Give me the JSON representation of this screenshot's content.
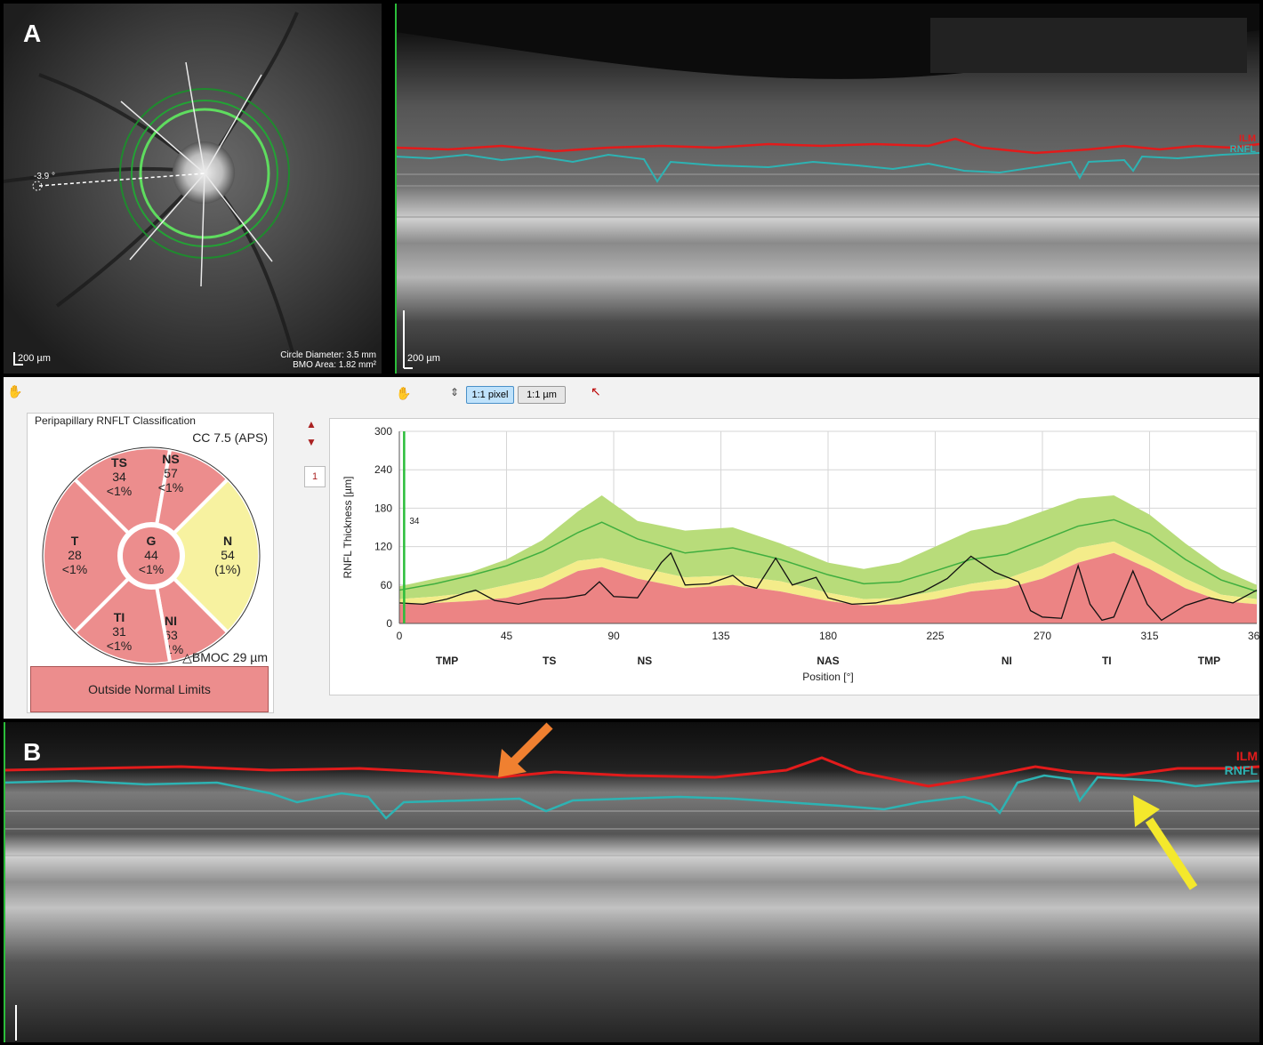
{
  "panel_a": {
    "letter": "A"
  },
  "panel_b": {
    "letter": "B"
  },
  "fundus": {
    "angle_label": "-3.9 °",
    "scale_label": "200 µm",
    "circle_diameter": "Circle Diameter: 3.5 mm",
    "bmo_area": "BMO Area: 1.82 mm²"
  },
  "bscan_a": {
    "scale_label": "200 µm",
    "ilm_label": "ILM",
    "rnfl_label": "RNFL"
  },
  "bscan_b": {
    "ilm_label": "ILM",
    "rnfl_label": "RNFL"
  },
  "toolbar": {
    "hand_icon": "hand-icon",
    "zoom_1_1_pixel": "1:1 pixel",
    "zoom_1_1_um": "1:1 µm",
    "page_number": "1"
  },
  "classification": {
    "title": "Peripapillary RNFLT Classification",
    "scan": "CC 7.5 (APS)",
    "bmoc": "BMOC 29 µm",
    "bmoc_symbol": "△",
    "verdict": "Outside Normal Limits",
    "colors": {
      "outside": "#ec8d8d",
      "borderline": "#f7f2a0"
    },
    "sectors": [
      {
        "abbr": "TS",
        "value": "34",
        "pct": "<1%",
        "status": "outside"
      },
      {
        "abbr": "NS",
        "value": "57",
        "pct": "<1%",
        "status": "outside"
      },
      {
        "abbr": "N",
        "value": "54",
        "pct": "(1%)",
        "status": "borderline"
      },
      {
        "abbr": "NI",
        "value": "63",
        "pct": "<1%",
        "status": "outside"
      },
      {
        "abbr": "TI",
        "value": "31",
        "pct": "<1%",
        "status": "outside"
      },
      {
        "abbr": "T",
        "value": "28",
        "pct": "<1%",
        "status": "outside"
      },
      {
        "abbr": "G",
        "value": "44",
        "pct": "<1%",
        "status": "outside"
      }
    ]
  },
  "chart_data": {
    "type": "line",
    "xlabel": "Position [°]",
    "ylabel": "RNFL Thickness [µm]",
    "xlim": [
      0,
      360
    ],
    "ylim": [
      0,
      300
    ],
    "xticks": [
      0,
      45,
      90,
      135,
      180,
      225,
      270,
      315,
      360
    ],
    "yticks": [
      0,
      60,
      120,
      180,
      240,
      300
    ],
    "sector_ticks": [
      {
        "x": 20,
        "label": "TMP"
      },
      {
        "x": 63,
        "label": "TS"
      },
      {
        "x": 103,
        "label": "NS"
      },
      {
        "x": 180,
        "label": "NAS"
      },
      {
        "x": 255,
        "label": "NI"
      },
      {
        "x": 297,
        "label": "TI"
      },
      {
        "x": 340,
        "label": "TMP"
      }
    ],
    "marker": {
      "x": 2,
      "label": "34"
    },
    "bands": {
      "x": [
        0,
        15,
        30,
        45,
        60,
        75,
        85,
        100,
        120,
        140,
        160,
        180,
        195,
        210,
        225,
        240,
        255,
        270,
        285,
        300,
        315,
        330,
        345,
        360
      ],
      "p1": [
        30,
        32,
        35,
        40,
        55,
        82,
        88,
        70,
        55,
        60,
        50,
        35,
        28,
        30,
        38,
        50,
        55,
        70,
        95,
        110,
        85,
        55,
        35,
        30
      ],
      "p5": [
        38,
        42,
        48,
        60,
        72,
        98,
        102,
        88,
        72,
        75,
        66,
        48,
        38,
        40,
        50,
        62,
        70,
        90,
        118,
        128,
        100,
        70,
        45,
        38
      ],
      "p95": [
        58,
        70,
        80,
        100,
        130,
        175,
        200,
        160,
        145,
        150,
        125,
        95,
        85,
        95,
        120,
        145,
        155,
        175,
        195,
        200,
        170,
        125,
        85,
        60
      ],
      "mean": [
        52,
        62,
        75,
        90,
        112,
        142,
        158,
        132,
        110,
        118,
        100,
        76,
        62,
        65,
        82,
        100,
        108,
        130,
        152,
        162,
        140,
        100,
        68,
        50
      ]
    },
    "series": [
      {
        "x": [
          0,
          10,
          20,
          28,
          32,
          40,
          50,
          60,
          70,
          78,
          84,
          90,
          100,
          110,
          114,
          120,
          130,
          140,
          145,
          150,
          158,
          165,
          175,
          180,
          190,
          200,
          210,
          220,
          230,
          240,
          250,
          260,
          265,
          270,
          278,
          285,
          290,
          295,
          300,
          308,
          314,
          320,
          330,
          340,
          350,
          360
        ],
        "values": [
          32,
          30,
          38,
          48,
          52,
          36,
          30,
          38,
          40,
          45,
          65,
          42,
          40,
          95,
          110,
          60,
          62,
          75,
          60,
          55,
          102,
          60,
          72,
          40,
          30,
          32,
          40,
          50,
          70,
          105,
          80,
          65,
          20,
          10,
          8,
          90,
          30,
          5,
          10,
          82,
          30,
          5,
          28,
          40,
          32,
          52
        ]
      }
    ]
  }
}
